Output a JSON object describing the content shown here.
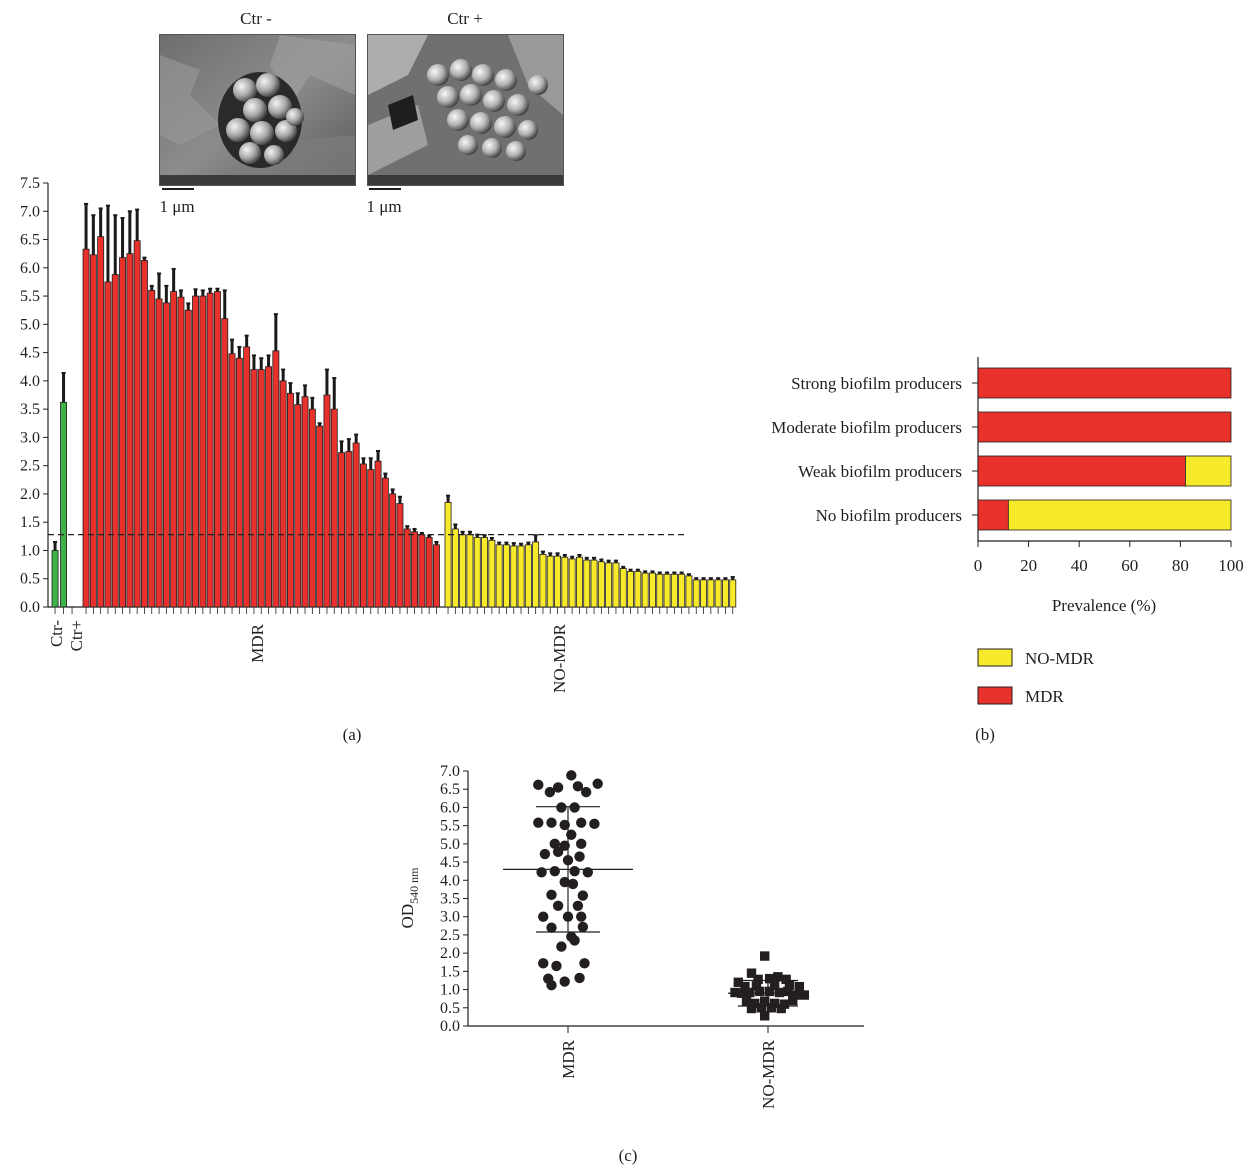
{
  "figure": {
    "panel_a_label": "(a)",
    "panel_b_label": "(b)",
    "panel_c_label": "(c)"
  },
  "micrographs": [
    {
      "title": "Ctr -",
      "scalebar": "1 μm"
    },
    {
      "title": "Ctr +",
      "scalebar": "1 μm"
    }
  ],
  "colors": {
    "mdr": "#e8312a",
    "nomdr": "#f7ea2a",
    "control": "#3fb34a",
    "error": "#1a1a1a"
  },
  "chart_data": [
    {
      "type": "bar",
      "panel": "a",
      "ylim": [
        0,
        7.5
      ],
      "yticks": [
        "0.0",
        "0.5",
        "1.0",
        "1.5",
        "2.0",
        "2.5",
        "3.0",
        "3.5",
        "4.0",
        "4.5",
        "5.0",
        "5.5",
        "6.0",
        "6.5",
        "7.0",
        "7.5"
      ],
      "cutoff": 1.28,
      "group_labels": [
        "Ctr-",
        "Ctr+",
        "MDR",
        "NO-MDR"
      ],
      "controls": [
        {
          "name": "Ctr-",
          "value": 1.0,
          "err": 0.15
        },
        {
          "name": "Ctr+",
          "value": 3.62,
          "err": 0.52
        }
      ],
      "series": [
        {
          "name": "MDR",
          "values": [
            6.33,
            6.23,
            6.55,
            5.75,
            5.88,
            6.18,
            6.25,
            6.48,
            6.13,
            5.6,
            5.45,
            5.38,
            5.58,
            5.48,
            5.25,
            5.5,
            5.5,
            5.55,
            5.58,
            5.1,
            4.48,
            4.4,
            4.6,
            4.2,
            4.2,
            4.25,
            4.53,
            4.0,
            3.78,
            3.58,
            3.72,
            3.5,
            3.2,
            3.75,
            3.5,
            2.73,
            2.75,
            2.9,
            2.53,
            2.43,
            2.58,
            2.28,
            2.0,
            1.83,
            1.38,
            1.33,
            1.28,
            1.23,
            1.1
          ],
          "errors": [
            0.8,
            0.7,
            0.5,
            1.35,
            1.05,
            0.7,
            0.75,
            0.55,
            0.05,
            0.08,
            0.45,
            0.3,
            0.4,
            0.12,
            0.12,
            0.12,
            0.1,
            0.08,
            0.05,
            0.5,
            0.25,
            0.2,
            0.2,
            0.25,
            0.2,
            0.2,
            0.65,
            0.2,
            0.18,
            0.2,
            0.2,
            0.2,
            0.05,
            0.45,
            0.55,
            0.2,
            0.22,
            0.15,
            0.1,
            0.2,
            0.18,
            0.08,
            0.08,
            0.12,
            0.05,
            0.05,
            0.03,
            0.03,
            0.05
          ]
        },
        {
          "name": "NO-MDR",
          "values": [
            1.85,
            1.38,
            1.28,
            1.28,
            1.23,
            1.23,
            1.18,
            1.1,
            1.1,
            1.08,
            1.08,
            1.1,
            1.15,
            0.93,
            0.9,
            0.9,
            0.88,
            0.85,
            0.88,
            0.83,
            0.83,
            0.8,
            0.78,
            0.78,
            0.68,
            0.63,
            0.63,
            0.6,
            0.6,
            0.58,
            0.58,
            0.58,
            0.58,
            0.55,
            0.48,
            0.48,
            0.48,
            0.48,
            0.48,
            0.48
          ],
          "errors": [
            0.12,
            0.08,
            0.05,
            0.05,
            0.05,
            0.04,
            0.04,
            0.04,
            0.04,
            0.05,
            0.04,
            0.04,
            0.12,
            0.05,
            0.05,
            0.05,
            0.04,
            0.04,
            0.04,
            0.04,
            0.04,
            0.04,
            0.04,
            0.04,
            0.03,
            0.03,
            0.03,
            0.03,
            0.03,
            0.03,
            0.03,
            0.03,
            0.03,
            0.03,
            0.03,
            0.03,
            0.03,
            0.03,
            0.03,
            0.05
          ]
        }
      ]
    },
    {
      "type": "bar",
      "panel": "b",
      "orientation": "horizontal",
      "stacked": true,
      "categories": [
        "Strong biofilm producers",
        "Moderate biofilm producers",
        "Weak biofilm producers",
        "No biofilm producers"
      ],
      "series": [
        {
          "name": "MDR",
          "values": [
            100,
            100,
            82,
            12
          ]
        },
        {
          "name": "NO-MDR",
          "values": [
            0,
            0,
            18,
            88
          ]
        }
      ],
      "xlim": [
        0,
        100
      ],
      "xticks": [
        "0",
        "20",
        "40",
        "60",
        "80",
        "100"
      ],
      "xlabel": "Prevalence (%)",
      "legend": [
        "NO-MDR",
        "MDR"
      ],
      "legend_position": "below"
    },
    {
      "type": "scatter",
      "panel": "c",
      "categories": [
        "MDR",
        "NO-MDR"
      ],
      "ylabel": "OD",
      "ylabel_sub": "540 nm",
      "ylim": [
        0,
        7.0
      ],
      "yticks": [
        "0.0",
        "0.5",
        "1.0",
        "1.5",
        "2.0",
        "2.5",
        "3.0",
        "3.5",
        "4.0",
        "4.5",
        "5.0",
        "5.5",
        "6.0",
        "6.5",
        "7.0"
      ],
      "series": [
        {
          "name": "MDR",
          "marker": "circle",
          "mean": 4.3,
          "upper": 6.02,
          "lower": 2.58,
          "points": [
            [
              -0.9,
              6.62
            ],
            [
              0.1,
              6.88
            ],
            [
              0.9,
              6.65
            ],
            [
              -0.3,
              6.55
            ],
            [
              0.3,
              6.58
            ],
            [
              -0.55,
              6.42
            ],
            [
              0.55,
              6.42
            ],
            [
              -0.2,
              6.0
            ],
            [
              0.2,
              6.0
            ],
            [
              -0.9,
              5.58
            ],
            [
              -0.5,
              5.58
            ],
            [
              -0.1,
              5.52
            ],
            [
              0.4,
              5.58
            ],
            [
              0.8,
              5.55
            ],
            [
              0.1,
              5.25
            ],
            [
              -0.4,
              5.0
            ],
            [
              0.4,
              5.0
            ],
            [
              -0.1,
              4.95
            ],
            [
              -0.7,
              4.72
            ],
            [
              -0.3,
              4.78
            ],
            [
              0.35,
              4.65
            ],
            [
              0.0,
              4.55
            ],
            [
              -0.8,
              4.22
            ],
            [
              -0.4,
              4.25
            ],
            [
              0.2,
              4.25
            ],
            [
              0.6,
              4.22
            ],
            [
              -0.1,
              3.95
            ],
            [
              0.15,
              3.9
            ],
            [
              -0.5,
              3.6
            ],
            [
              0.45,
              3.58
            ],
            [
              -0.3,
              3.3
            ],
            [
              0.3,
              3.3
            ],
            [
              -0.75,
              3.0
            ],
            [
              0.0,
              3.0
            ],
            [
              0.4,
              3.0
            ],
            [
              -0.5,
              2.7
            ],
            [
              0.45,
              2.72
            ],
            [
              0.1,
              2.45
            ],
            [
              -0.2,
              2.18
            ],
            [
              0.2,
              2.35
            ],
            [
              -0.75,
              1.72
            ],
            [
              -0.35,
              1.65
            ],
            [
              0.5,
              1.72
            ],
            [
              -0.6,
              1.3
            ],
            [
              0.35,
              1.32
            ],
            [
              -0.1,
              1.22
            ],
            [
              -0.5,
              1.12
            ]
          ]
        },
        {
          "name": "NO-MDR",
          "marker": "square",
          "mean": 0.9,
          "upper": 1.25,
          "lower": 0.55,
          "points": [
            [
              -0.1,
              1.92
            ],
            [
              -0.5,
              1.45
            ],
            [
              0.3,
              1.35
            ],
            [
              -0.9,
              1.2
            ],
            [
              -0.3,
              1.28
            ],
            [
              0.05,
              1.3
            ],
            [
              0.55,
              1.28
            ],
            [
              -0.7,
              1.08
            ],
            [
              -0.35,
              1.1
            ],
            [
              0.2,
              1.12
            ],
            [
              0.65,
              1.12
            ],
            [
              0.95,
              1.08
            ],
            [
              -1.0,
              0.92
            ],
            [
              -0.8,
              0.9
            ],
            [
              -0.55,
              0.92
            ],
            [
              -0.25,
              0.95
            ],
            [
              0.05,
              0.95
            ],
            [
              0.35,
              0.92
            ],
            [
              0.6,
              0.95
            ],
            [
              0.85,
              0.85
            ],
            [
              1.1,
              0.85
            ],
            [
              -0.65,
              0.68
            ],
            [
              -0.4,
              0.62
            ],
            [
              -0.1,
              0.68
            ],
            [
              0.2,
              0.62
            ],
            [
              0.5,
              0.6
            ],
            [
              0.75,
              0.7
            ],
            [
              -0.5,
              0.48
            ],
            [
              -0.2,
              0.5
            ],
            [
              0.1,
              0.5
            ],
            [
              0.4,
              0.48
            ],
            [
              -0.1,
              0.28
            ]
          ]
        }
      ]
    }
  ]
}
